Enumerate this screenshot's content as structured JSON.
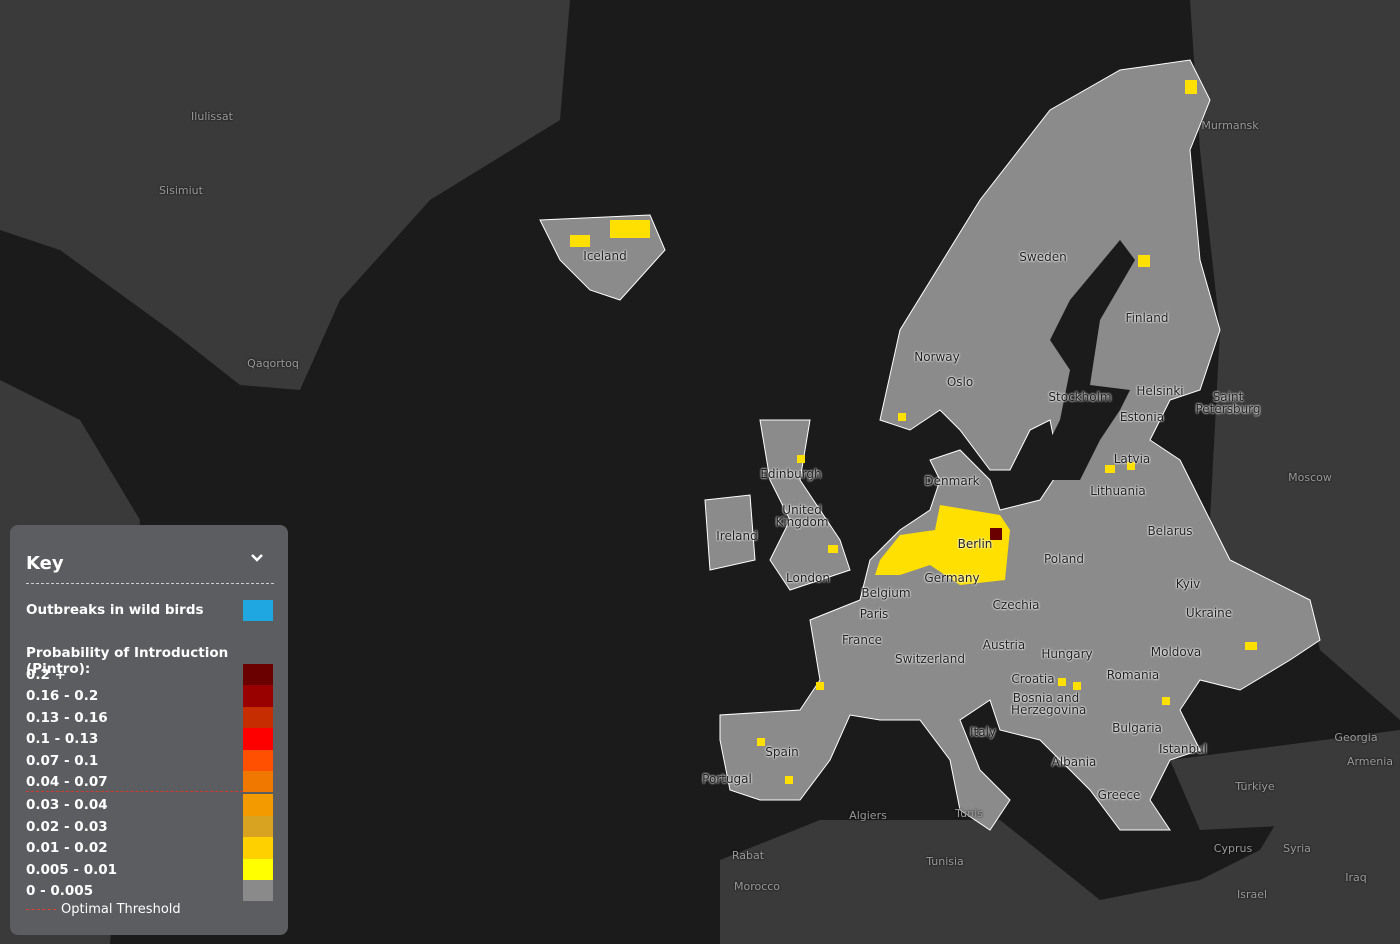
{
  "map": {
    "labels": [
      "Ilulissat",
      "Sisimiut",
      "Qaqortoq",
      "Iceland",
      "Sweden",
      "Finland",
      "Norway",
      "Oslo",
      "Stockholm",
      "Helsinki",
      "Saint Petersburg",
      "Murmansk",
      "Estonia",
      "Latvia",
      "Lithuania",
      "Moscow",
      "Belarus",
      "Denmark",
      "Edinburgh",
      "United Kingdom",
      "Ireland",
      "London",
      "Berlin",
      "Poland",
      "Germany",
      "Belgium",
      "Paris",
      "France",
      "Czechia",
      "Kyiv",
      "Ukraine",
      "Austria",
      "Switzerland",
      "Hungary",
      "Moldova",
      "Romania",
      "Croatia",
      "Bosnia and Herzegovina",
      "Bulgaria",
      "Italy",
      "Spain",
      "Portugal",
      "Albania",
      "Istanbul",
      "Greece",
      "Georgia",
      "Armenia",
      "Türkiye",
      "Algiers",
      "Tunis",
      "Rabat",
      "Tunisia",
      "Morocco",
      "Cyprus",
      "Syria",
      "Iraq",
      "Israel"
    ]
  },
  "legend": {
    "title": "Key",
    "wild_birds": "Outbreaks in wild birds",
    "wild_birds_color": "#1ea7e1",
    "pintro_title": "Probability of Introduction (Pintro):",
    "classes": [
      {
        "label": "0.2 +",
        "color": "#6a0000"
      },
      {
        "label": "0.16 - 0.2",
        "color": "#990000"
      },
      {
        "label": "0.13 - 0.16",
        "color": "#c62d00"
      },
      {
        "label": "0.1 - 0.13",
        "color": "#ff0000"
      },
      {
        "label": "0.07 - 0.1",
        "color": "#ff4f00"
      },
      {
        "label": "0.04 - 0.07",
        "color": "#f07800"
      },
      {
        "label": "0.03 - 0.04",
        "color": "#f29a00"
      },
      {
        "label": "0.02 - 0.03",
        "color": "#d8a321"
      },
      {
        "label": "0.01 - 0.02",
        "color": "#ffd000"
      },
      {
        "label": "0.005 - 0.01",
        "color": "#ffff00"
      },
      {
        "label": "0 - 0.005",
        "color": "#8a8a8a"
      }
    ],
    "threshold": "Optimal Threshold"
  }
}
